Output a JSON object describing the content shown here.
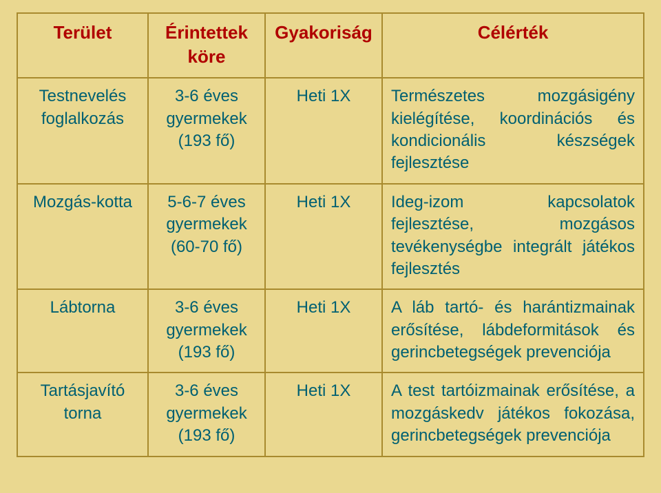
{
  "header": {
    "col1": "Terület",
    "col2": "Érintettek köre",
    "col3": "Gyakoriság",
    "col4": "Célérték"
  },
  "rows": [
    {
      "area": "Testnevelés foglalkozás",
      "affected": "3-6 éves gyermekek (193 fő)",
      "freq": "Heti 1X",
      "goal": "Természetes mozgásigény kielégítése, koordinációs és kondicionális készségek fejlesztése"
    },
    {
      "area": "Mozgás-kotta",
      "affected": "5-6-7 éves gyermekek (60-70 fő)",
      "freq": "Heti 1X",
      "goal": "Ideg-izom kapcsolatok fejlesztése, mozgásos tevékenységbe integrált játékos fejlesztés"
    },
    {
      "area": "Lábtorna",
      "affected": "3-6 éves gyermekek (193 fő)",
      "freq": "Heti 1X",
      "goal": "A láb tartó- és harántizmainak erősítése, lábdeformitások és gerincbetegségek prevenciója"
    },
    {
      "area": "Tartásjavító torna",
      "affected": "3-6 éves gyermekek (193 fő)",
      "freq": "Heti 1X",
      "goal": "A test tartóizmainak erősítése, a mozgáskedv játékos fokozása, gerincbetegségek prevenciója"
    }
  ]
}
